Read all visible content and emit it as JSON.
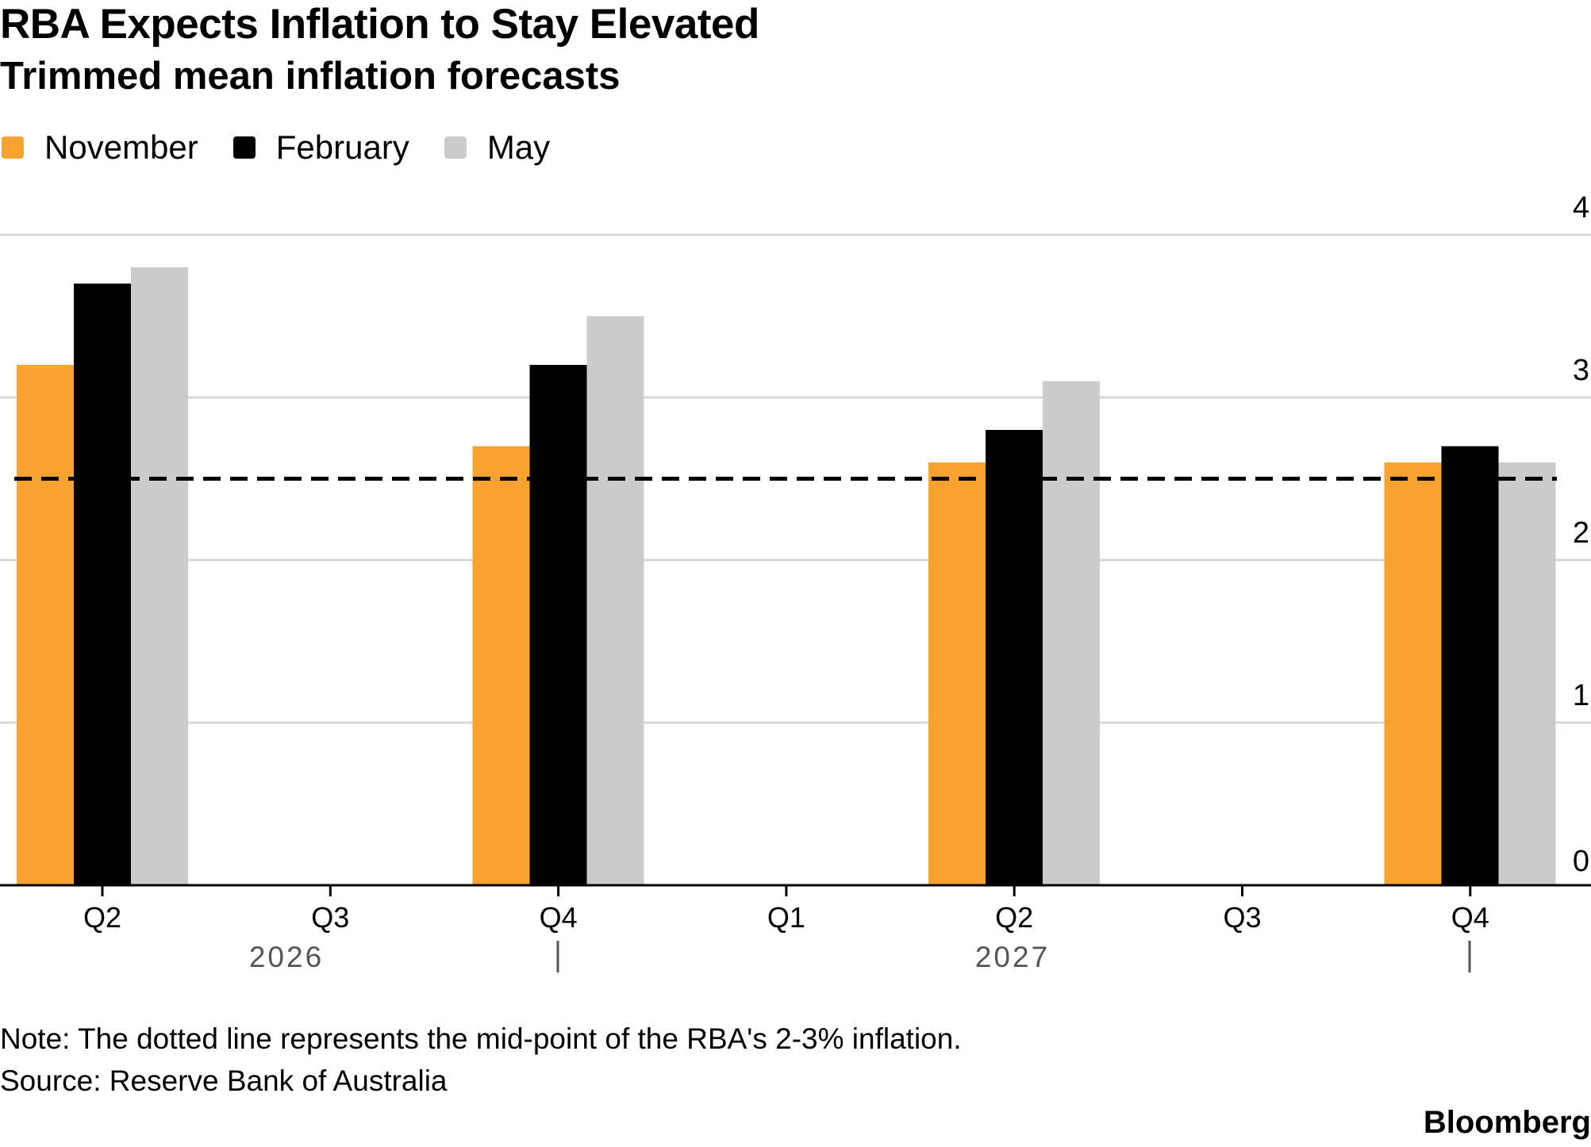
{
  "header": {
    "title": "RBA Expects Inflation to Stay Elevated",
    "subtitle": "Trimmed mean inflation forecasts"
  },
  "legend": [
    {
      "label": "November",
      "color": "#F8A22F"
    },
    {
      "label": "February",
      "color": "#000000"
    },
    {
      "label": "May",
      "color": "#CCCCCC"
    }
  ],
  "chart_data": {
    "type": "bar",
    "categories": [
      "Q2 2026",
      "Q4 2026",
      "Q2 2027",
      "Q4 2027"
    ],
    "series": [
      {
        "name": "November",
        "color": "#F8A22F",
        "values": [
          3.2,
          2.7,
          2.6,
          2.6
        ]
      },
      {
        "name": "February",
        "color": "#000000",
        "values": [
          3.7,
          3.2,
          2.8,
          2.7
        ]
      },
      {
        "name": "May",
        "color": "#CCCCCC",
        "values": [
          3.8,
          3.5,
          3.1,
          2.6
        ]
      }
    ],
    "ylim": [
      0,
      4
    ],
    "y_ticks": [
      "0",
      "1",
      "2",
      "3",
      "4"
    ],
    "reference_line": {
      "value": 2.5,
      "style": "dashed"
    },
    "x_ticks": [
      "Q2",
      "Q3",
      "Q4",
      "Q1",
      "Q2",
      "Q3",
      "Q4"
    ],
    "x_years": [
      "2026",
      "2027"
    ],
    "grid": true,
    "legend_position": "top-left"
  },
  "footer": {
    "note": "Note: The dotted line represents the mid-point of the RBA's 2-3% inflation.",
    "source": "Source: Reserve Bank of Australia",
    "brand": "Bloomberg"
  }
}
